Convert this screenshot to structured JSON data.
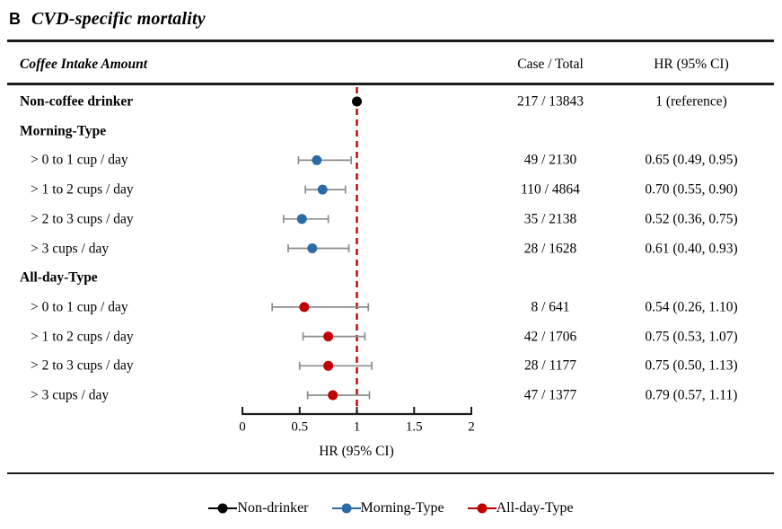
{
  "figure": {
    "panel_letter": "B",
    "title": "CVD-specific mortality"
  },
  "table_headers": {
    "label": "Coffee Intake Amount",
    "case_total": "Case / Total",
    "hr_ci": "HR (95% CI)"
  },
  "chart_data": {
    "type": "scatter",
    "variant": "forest-plot",
    "title": "CVD-specific mortality",
    "xlabel": "HR (95% CI)",
    "xlim": [
      0,
      2
    ],
    "x_ticks": [
      0,
      0.5,
      1,
      1.5,
      2
    ],
    "x_tick_labels": [
      "0",
      "0.5",
      "1",
      "1.5",
      "2"
    ],
    "reference_line_x": 1,
    "grid": false,
    "legend_position": "bottom",
    "series": [
      {
        "id": "non_drinker",
        "name": "Non-drinker",
        "color": "#000000"
      },
      {
        "id": "morning",
        "name": "Morning-Type",
        "color": "#2B6BA6"
      },
      {
        "id": "all_day",
        "name": "All-day-Type",
        "color": "#C00000"
      }
    ],
    "rows": [
      {
        "label": "Non-coffee drinker",
        "bold": true,
        "indent": false,
        "case_total": "217 / 13843",
        "hr_ci": "1 (reference)",
        "series": "non_drinker",
        "hr": 1.0
      },
      {
        "label": "Morning-Type",
        "bold": true,
        "indent": false
      },
      {
        "label": "> 0 to 1 cup / day",
        "bold": false,
        "indent": true,
        "case_total": "49 / 2130",
        "hr_ci": "0.65 (0.49, 0.95)",
        "series": "morning",
        "hr": 0.65,
        "ci_low": 0.49,
        "ci_high": 0.95
      },
      {
        "label": "> 1 to 2 cups / day",
        "bold": false,
        "indent": true,
        "case_total": "110 / 4864",
        "hr_ci": "0.70 (0.55, 0.90)",
        "series": "morning",
        "hr": 0.7,
        "ci_low": 0.55,
        "ci_high": 0.9
      },
      {
        "label": "> 2 to 3 cups / day",
        "bold": false,
        "indent": true,
        "case_total": "35 / 2138",
        "hr_ci": "0.52 (0.36, 0.75)",
        "series": "morning",
        "hr": 0.52,
        "ci_low": 0.36,
        "ci_high": 0.75
      },
      {
        "label": "> 3 cups / day",
        "bold": false,
        "indent": true,
        "case_total": "28 / 1628",
        "hr_ci": "0.61 (0.40, 0.93)",
        "series": "morning",
        "hr": 0.61,
        "ci_low": 0.4,
        "ci_high": 0.93
      },
      {
        "label": "All-day-Type",
        "bold": true,
        "indent": false
      },
      {
        "label": "> 0 to 1 cup / day",
        "bold": false,
        "indent": true,
        "case_total": "8 / 641",
        "hr_ci": "0.54 (0.26, 1.10)",
        "series": "all_day",
        "hr": 0.54,
        "ci_low": 0.26,
        "ci_high": 1.1
      },
      {
        "label": "> 1 to 2 cups / day",
        "bold": false,
        "indent": true,
        "case_total": "42 / 1706",
        "hr_ci": "0.75 (0.53, 1.07)",
        "series": "all_day",
        "hr": 0.75,
        "ci_low": 0.53,
        "ci_high": 1.07
      },
      {
        "label": "> 2 to 3 cups / day",
        "bold": false,
        "indent": true,
        "case_total": "28 / 1177",
        "hr_ci": "0.75 (0.50, 1.13)",
        "series": "all_day",
        "hr": 0.75,
        "ci_low": 0.5,
        "ci_high": 1.13
      },
      {
        "label": "> 3 cups / day",
        "bold": false,
        "indent": true,
        "case_total": "47 / 1377",
        "hr_ci": "0.79 (0.57, 1.11)",
        "series": "all_day",
        "hr": 0.79,
        "ci_low": 0.57,
        "ci_high": 1.11
      }
    ]
  },
  "colors": {
    "reference_line": "#C00000",
    "error_bar": "#8C8C8C",
    "rule": "#1c1c1c"
  }
}
